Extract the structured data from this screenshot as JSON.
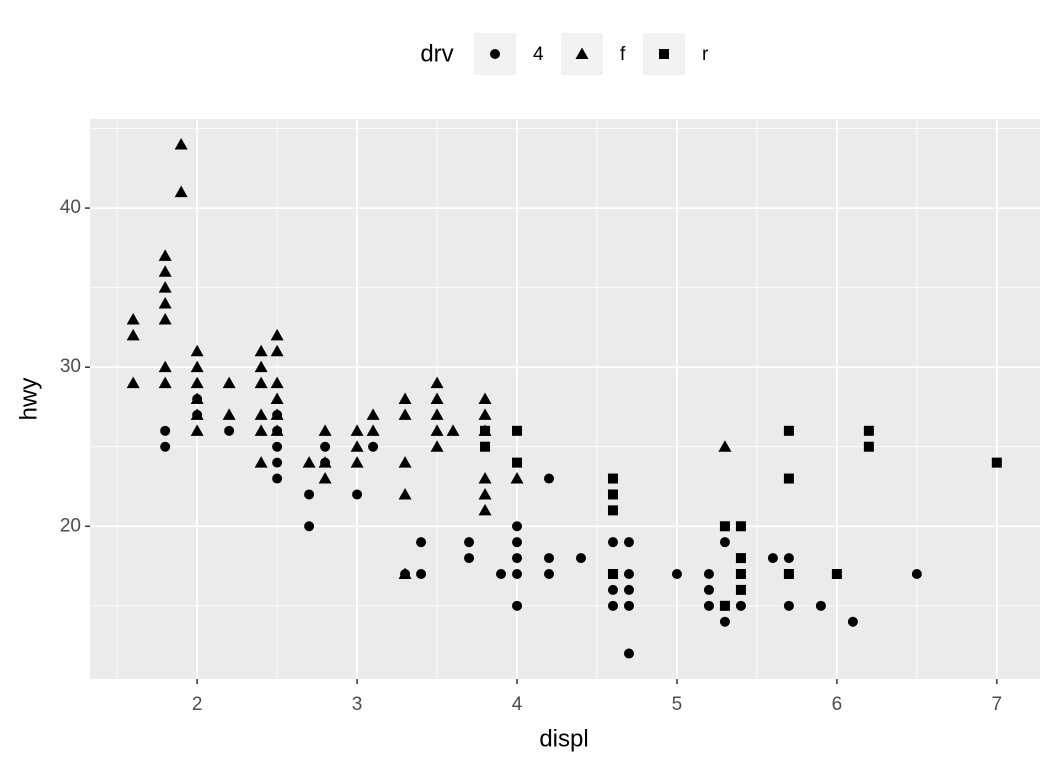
{
  "chart_data": {
    "type": "scatter",
    "x_label": "displ",
    "y_label": "hwy",
    "legend_title": "drv",
    "legend_position": "top",
    "xlim": [
      1.33,
      7.27
    ],
    "ylim": [
      10.4,
      45.6
    ],
    "xticks": [
      2,
      3,
      4,
      5,
      6,
      7
    ],
    "yticks": [
      20,
      30,
      40
    ],
    "x_minor_grid": [
      1.5,
      2.5,
      3.5,
      4.5,
      5.5,
      6.5
    ],
    "y_minor_grid": [
      15,
      25,
      35,
      45
    ],
    "grid": true,
    "color": "#000000",
    "series": [
      {
        "name": "4",
        "shape": "circle",
        "x": [
          1.8,
          1.8,
          2.0,
          2.0,
          2.2,
          2.5,
          2.5,
          2.5,
          2.5,
          2.5,
          2.7,
          2.7,
          2.8,
          2.8,
          3.0,
          3.1,
          3.3,
          3.4,
          3.4,
          3.7,
          3.7,
          3.9,
          4.0,
          4.0,
          4.0,
          4.0,
          4.0,
          4.2,
          4.2,
          4.2,
          4.4,
          4.6,
          4.6,
          4.6,
          4.6,
          4.7,
          4.7,
          4.7,
          4.7,
          4.7,
          5.0,
          5.2,
          5.2,
          5.2,
          5.3,
          5.3,
          5.3,
          5.4,
          5.6,
          5.7,
          5.7,
          5.7,
          5.9,
          6.1,
          6.5
        ],
        "values": [
          26,
          25,
          28,
          27,
          26,
          27,
          26,
          25,
          24,
          23,
          22,
          20,
          25,
          24,
          22,
          25,
          17,
          19,
          17,
          19,
          18,
          17,
          20,
          19,
          18,
          17,
          15,
          23,
          18,
          17,
          18,
          19,
          17,
          16,
          15,
          19,
          17,
          16,
          15,
          12,
          17,
          17,
          16,
          15,
          19,
          15,
          14,
          15,
          18,
          18,
          17,
          15,
          15,
          14,
          17
        ]
      },
      {
        "name": "f",
        "shape": "triangle",
        "x": [
          1.6,
          1.6,
          1.6,
          1.8,
          1.8,
          1.8,
          1.8,
          1.8,
          1.8,
          1.8,
          1.9,
          1.9,
          2.0,
          2.0,
          2.0,
          2.0,
          2.0,
          2.0,
          2.2,
          2.2,
          2.4,
          2.4,
          2.4,
          2.4,
          2.4,
          2.4,
          2.5,
          2.5,
          2.5,
          2.5,
          2.5,
          2.5,
          2.7,
          2.8,
          2.8,
          2.8,
          3.0,
          3.0,
          3.0,
          3.1,
          3.1,
          3.3,
          3.3,
          3.3,
          3.3,
          3.3,
          3.5,
          3.5,
          3.5,
          3.5,
          3.5,
          3.6,
          3.8,
          3.8,
          3.8,
          3.8,
          3.8,
          3.8,
          4.0,
          5.3
        ],
        "values": [
          33,
          32,
          29,
          37,
          36,
          35,
          34,
          33,
          30,
          29,
          44,
          41,
          31,
          30,
          29,
          28,
          27,
          26,
          29,
          27,
          31,
          30,
          29,
          27,
          26,
          24,
          32,
          31,
          29,
          28,
          27,
          26,
          24,
          26,
          24,
          23,
          26,
          25,
          24,
          27,
          26,
          28,
          27,
          24,
          22,
          17,
          29,
          28,
          27,
          26,
          25,
          26,
          28,
          27,
          26,
          23,
          22,
          21,
          23,
          25
        ]
      },
      {
        "name": "r",
        "shape": "square",
        "x": [
          3.8,
          3.8,
          4.0,
          4.0,
          4.6,
          4.6,
          4.6,
          4.6,
          5.3,
          5.3,
          5.4,
          5.4,
          5.4,
          5.4,
          5.7,
          5.7,
          5.7,
          6.0,
          6.2,
          6.2,
          7.0
        ],
        "values": [
          26,
          25,
          26,
          24,
          23,
          22,
          21,
          17,
          20,
          15,
          20,
          18,
          17,
          16,
          26,
          23,
          17,
          17,
          26,
          25,
          24
        ]
      }
    ]
  }
}
